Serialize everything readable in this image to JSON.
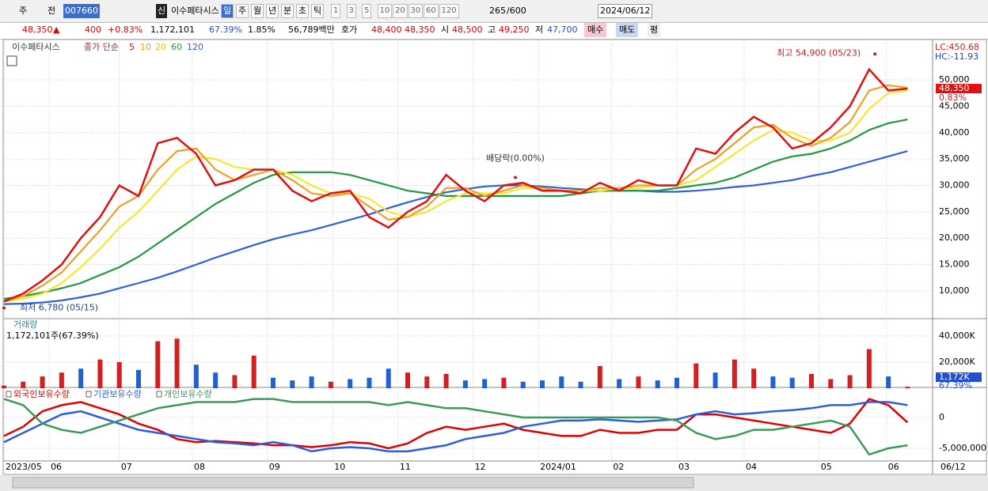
{
  "toolbar": {
    "period_code": "주",
    "prev": "전",
    "code": "007660",
    "new_badge": "신",
    "name": "이수페타시스",
    "periods": [
      "일",
      "주",
      "월",
      "년",
      "분",
      "초",
      "틱"
    ],
    "intervals": [
      "1",
      "3",
      "5",
      "10",
      "20",
      "30",
      "60",
      "120"
    ],
    "count": "265",
    "max_count": "/600",
    "date": "2024/06/12"
  },
  "quote_bar": {
    "price": "48,350",
    "arrow": "▲",
    "change": "400",
    "change_pct": "+0.83%",
    "volume": "1,172,101",
    "volume_ratio": "67.39%",
    "turnover": "1.85%",
    "amount": "56,789백만",
    "bid_ask_label": "호가",
    "ask": "48,400",
    "bid": "48,350",
    "open_label": "시",
    "open": "48,500",
    "high_label": "고",
    "high": "49,250",
    "low_label": "저",
    "low": "47,700",
    "buy": "매수",
    "sell": "매도",
    "avg": "평"
  },
  "chart_data": [
    {
      "type": "line",
      "title": "이수페타시스",
      "subtitle": "종가 단순",
      "xlim": [
        0,
        48.3
      ],
      "xticks": [
        {
          "value": 0,
          "label": "2023/05"
        },
        {
          "value": 2.35,
          "label": "06"
        },
        {
          "value": 6.0,
          "label": "07"
        },
        {
          "value": 9.8,
          "label": "08"
        },
        {
          "value": 13.7,
          "label": "09"
        },
        {
          "value": 17.1,
          "label": "10"
        },
        {
          "value": 20.5,
          "label": "11"
        },
        {
          "value": 24.4,
          "label": "12"
        },
        {
          "value": 27.8,
          "label": "2024/01"
        },
        {
          "value": 31.6,
          "label": "02"
        },
        {
          "value": 35.0,
          "label": "03"
        },
        {
          "value": 38.5,
          "label": "04"
        },
        {
          "value": 42.4,
          "label": "05"
        },
        {
          "value": 45.9,
          "label": "06"
        }
      ],
      "last_tick_label": "06/12",
      "ylim": [
        4750,
        57350
      ],
      "yticks": [
        {
          "value": 50000,
          "label": "50,000"
        },
        {
          "value": 45000,
          "label": "45,000"
        },
        {
          "value": 40000,
          "label": "40,000"
        },
        {
          "value": 35000,
          "label": "35,000"
        },
        {
          "value": 30000,
          "label": "30,000"
        },
        {
          "value": 25000,
          "label": "25,000"
        },
        {
          "value": 20000,
          "label": "20,000"
        },
        {
          "value": 15000,
          "label": "15,000"
        },
        {
          "value": 10000,
          "label": "10,000"
        }
      ],
      "grid": true,
      "series": [
        {
          "name": "120",
          "color": "#2f5fe0",
          "values": [
            7500,
            7600,
            7800,
            8200,
            8800,
            9500,
            10500,
            11500,
            12500,
            13700,
            15000,
            16300,
            17500,
            18700,
            19800,
            20700,
            21500,
            22500,
            23500,
            24500,
            25700,
            26800,
            27800,
            28700,
            29300,
            29800,
            30000,
            30000,
            29800,
            29500,
            29300,
            29000,
            29000,
            29000,
            28800,
            28800,
            29000,
            29300,
            29700,
            30000,
            30500,
            31000,
            31800,
            32500,
            33500,
            34500,
            35500,
            36500
          ]
        },
        {
          "name": "60",
          "color": "#1e9a3c",
          "values": [
            8500,
            9000,
            9700,
            10500,
            11500,
            13000,
            14500,
            16500,
            19000,
            21500,
            24000,
            26500,
            28500,
            30500,
            32000,
            32500,
            32500,
            32500,
            32000,
            31000,
            30000,
            29000,
            28500,
            28000,
            28000,
            28000,
            28000,
            28000,
            28000,
            28000,
            28500,
            29000,
            29000,
            29000,
            29000,
            29500,
            30000,
            30500,
            31500,
            33000,
            34500,
            35500,
            36000,
            37000,
            38500,
            40500,
            41800,
            42500
          ]
        },
        {
          "name": "20",
          "color": "#f5e830",
          "values": [
            8000,
            8500,
            9500,
            11500,
            14500,
            18000,
            22000,
            25000,
            29000,
            33000,
            35500,
            35000,
            33500,
            33000,
            33000,
            32000,
            30000,
            28500,
            28500,
            27500,
            25000,
            24000,
            25000,
            27000,
            28500,
            28500,
            28500,
            29500,
            29500,
            29000,
            29000,
            29000,
            29500,
            29500,
            30000,
            30000,
            31000,
            33500,
            36000,
            38500,
            40500,
            40000,
            38500,
            38500,
            40000,
            44500,
            47500,
            48000
          ]
        },
        {
          "name": "10",
          "color": "#f0a020",
          "values": [
            8000,
            9000,
            11000,
            13500,
            17500,
            21500,
            26000,
            28000,
            33000,
            36500,
            37000,
            33000,
            31000,
            32000,
            33000,
            31000,
            28500,
            28000,
            28500,
            26000,
            23500,
            24000,
            26000,
            29500,
            29500,
            28000,
            29000,
            30000,
            29500,
            29000,
            29000,
            29500,
            29500,
            30000,
            30000,
            30000,
            33000,
            35000,
            38000,
            41000,
            41500,
            39000,
            37500,
            39000,
            42000,
            48000,
            49000,
            48500
          ]
        },
        {
          "name": "5",
          "color": "#e01010",
          "values": [
            8000,
            9500,
            12000,
            15000,
            20000,
            24000,
            30000,
            28000,
            38000,
            39000,
            36000,
            30000,
            31000,
            33000,
            33000,
            29000,
            27000,
            28500,
            29000,
            24000,
            22000,
            25000,
            27000,
            32000,
            29000,
            27000,
            30000,
            30500,
            29000,
            29000,
            28500,
            30500,
            29000,
            31000,
            30000,
            30000,
            37000,
            36000,
            40000,
            43000,
            41000,
            37000,
            38000,
            41000,
            45000,
            52000,
            48000,
            48350
          ]
        }
      ],
      "annotations": [
        {
          "text": "최고 54,900 (05/23)",
          "x": 45.3,
          "y": 54900
        },
        {
          "text": "최저 6,780 (05/15)",
          "x": 0,
          "y": 6780
        },
        {
          "text": "배당락(0.00%)",
          "x": 26.6,
          "y": 31500
        }
      ],
      "indicators": [
        "LC:450.68",
        "HC:-11.93"
      ],
      "last_value": {
        "value": 48350,
        "label": "48,350"
      },
      "last_change": "0.83%"
    },
    {
      "type": "bar",
      "title": "거래량",
      "subtitle": "1,172,101주(67.39%)",
      "ylim": [
        0,
        52700
      ],
      "yticks": [
        {
          "value": 40000,
          "label": "40,000K"
        },
        {
          "value": 20000,
          "label": "20,000K"
        }
      ],
      "values": [
        2000,
        5000,
        9000,
        12000,
        15000,
        22000,
        20000,
        14000,
        36000,
        38000,
        18000,
        12000,
        10000,
        25000,
        8000,
        6000,
        9000,
        5000,
        7000,
        8000,
        15000,
        12000,
        9000,
        11000,
        6000,
        7000,
        8000,
        5000,
        6000,
        9000,
        5000,
        17000,
        7000,
        9000,
        6000,
        8000,
        19000,
        12000,
        22000,
        15000,
        9000,
        8000,
        11000,
        7000,
        10000,
        30000,
        9000,
        1172
      ],
      "colors": [
        "#d02020",
        "#d02020",
        "#d02020",
        "#d02020",
        "#2060d0",
        "#d02020",
        "#d02020",
        "#2060d0",
        "#d02020",
        "#d02020",
        "#2060d0",
        "#2060d0",
        "#d02020",
        "#d02020",
        "#2060d0",
        "#2060d0",
        "#2060d0",
        "#d02020",
        "#2060d0",
        "#2060d0",
        "#2060d0",
        "#d02020",
        "#d02020",
        "#d02020",
        "#2060d0",
        "#2060d0",
        "#d02020",
        "#2060d0",
        "#2060d0",
        "#2060d0",
        "#2060d0",
        "#d02020",
        "#2060d0",
        "#d02020",
        "#2060d0",
        "#2060d0",
        "#d02020",
        "#2060d0",
        "#d02020",
        "#d02020",
        "#2060d0",
        "#2060d0",
        "#d02020",
        "#d02020",
        "#d02020",
        "#d02020",
        "#2060d0",
        "#d02020"
      ],
      "last_value": {
        "value": 1172,
        "label": "1,172K"
      },
      "last_change": "67.39%"
    },
    {
      "type": "line",
      "ylim": [
        -7050000,
        4490000
      ],
      "yticks": [
        0,
        {
          "value": -5000000,
          "label": "-5,000,000"
        }
      ],
      "series": [
        {
          "name": "외국인보유수량",
          "color": "#e00000",
          "values": [
            -3000000,
            -1500000,
            1000000,
            2000000,
            2500000,
            1500000,
            500000,
            -1000000,
            -2000000,
            -3500000,
            -4000000,
            -3800000,
            -4000000,
            -4200000,
            -4500000,
            -4500000,
            -4800000,
            -4500000,
            -4000000,
            -4200000,
            -5000000,
            -4200000,
            -2500000,
            -1500000,
            -2000000,
            -1500000,
            -1000000,
            -2000000,
            -2500000,
            -3000000,
            -3000000,
            -2000000,
            -2500000,
            -2500000,
            -2000000,
            -2000000,
            500000,
            500000,
            0,
            -500000,
            -1000000,
            -1500000,
            -2000000,
            -2500000,
            -1000000,
            3000000,
            2000000,
            -800000
          ]
        },
        {
          "name": "기관보유수량",
          "color": "#2a5de0",
          "values": [
            -4000000,
            -2500000,
            -1000000,
            500000,
            1000000,
            0,
            -1000000,
            -2000000,
            -2500000,
            -3000000,
            -3500000,
            -4000000,
            -4200000,
            -4500000,
            -4000000,
            -4500000,
            -5500000,
            -5000000,
            -4800000,
            -5000000,
            -5500000,
            -5500000,
            -5000000,
            -4500000,
            -3500000,
            -3000000,
            -2500000,
            -1500000,
            -1000000,
            -500000,
            -500000,
            -300000,
            -500000,
            -700000,
            -500000,
            -300000,
            500000,
            1000000,
            500000,
            700000,
            1000000,
            1200000,
            1500000,
            2000000,
            2000000,
            2500000,
            2500000,
            2000000
          ]
        },
        {
          "name": "개인보유수량",
          "color": "#3a9a5a",
          "values": [
            3000000,
            2000000,
            -1000000,
            -2000000,
            -2500000,
            -1500000,
            -500000,
            500000,
            1500000,
            2000000,
            2500000,
            2500000,
            2500000,
            3000000,
            3000000,
            2500000,
            2500000,
            2500000,
            2500000,
            2500000,
            2000000,
            2500000,
            2000000,
            1500000,
            1500000,
            1000000,
            500000,
            0,
            0,
            0,
            0,
            0,
            0,
            0,
            0,
            -500000,
            -2500000,
            -3500000,
            -3000000,
            -2000000,
            -2000000,
            -1500000,
            -1000000,
            -500000,
            -1500000,
            -6000000,
            -5000000,
            -4500000
          ]
        }
      ]
    }
  ]
}
